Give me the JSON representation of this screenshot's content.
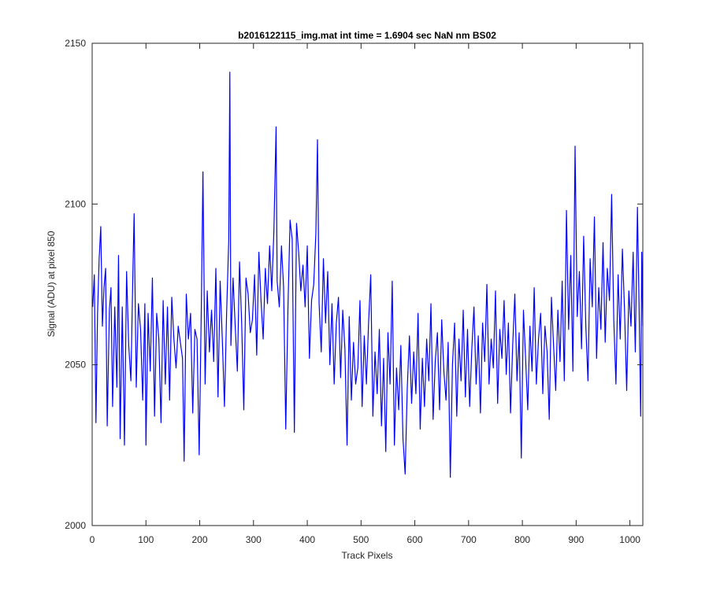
{
  "chart_data": {
    "type": "line",
    "title": "b2016122115_img.mat int time = 1.6904 sec  NaN nm BS02",
    "xlabel": "Track Pixels",
    "ylabel": "Signal (ADU) at pixel 850",
    "xlim": [
      0,
      1024
    ],
    "ylim": [
      2000,
      2150
    ],
    "xticks": [
      0,
      100,
      200,
      300,
      400,
      500,
      600,
      700,
      800,
      900,
      1000
    ],
    "yticks": [
      2000,
      2050,
      2100,
      2150
    ],
    "grid": false,
    "legend": "none",
    "series_color": "#0000ff",
    "series": [
      {
        "values_start_x": 1,
        "values_step_x": 1,
        "anchors": [
          [
            1,
            2068
          ],
          [
            4,
            2078
          ],
          [
            7,
            2032
          ],
          [
            10,
            2066
          ],
          [
            13,
            2083
          ],
          [
            16,
            2093
          ],
          [
            19,
            2062
          ],
          [
            22,
            2074
          ],
          [
            25,
            2080
          ],
          [
            28,
            2031
          ],
          [
            32,
            2067
          ],
          [
            35,
            2074
          ],
          [
            38,
            2037
          ],
          [
            42,
            2068
          ],
          [
            46,
            2043
          ],
          [
            49,
            2084
          ],
          [
            52,
            2027
          ],
          [
            56,
            2068
          ],
          [
            60,
            2025
          ],
          [
            64,
            2079
          ],
          [
            68,
            2056
          ],
          [
            72,
            2045
          ],
          [
            76,
            2081
          ],
          [
            78,
            2097
          ],
          [
            82,
            2043
          ],
          [
            86,
            2069
          ],
          [
            90,
            2061
          ],
          [
            94,
            2039
          ],
          [
            98,
            2069
          ],
          [
            100,
            2025
          ],
          [
            104,
            2066
          ],
          [
            108,
            2048
          ],
          [
            112,
            2077
          ],
          [
            116,
            2034
          ],
          [
            120,
            2066
          ],
          [
            124,
            2058
          ],
          [
            128,
            2032
          ],
          [
            132,
            2070
          ],
          [
            136,
            2044
          ],
          [
            140,
            2068
          ],
          [
            144,
            2039
          ],
          [
            148,
            2071
          ],
          [
            152,
            2058
          ],
          [
            156,
            2049
          ],
          [
            160,
            2062
          ],
          [
            164,
            2057
          ],
          [
            168,
            2052
          ],
          [
            171,
            2020
          ],
          [
            175,
            2072
          ],
          [
            179,
            2058
          ],
          [
            183,
            2066
          ],
          [
            187,
            2035
          ],
          [
            191,
            2061
          ],
          [
            195,
            2058
          ],
          [
            199,
            2022
          ],
          [
            203,
            2068
          ],
          [
            206,
            2110
          ],
          [
            210,
            2044
          ],
          [
            214,
            2073
          ],
          [
            218,
            2054
          ],
          [
            222,
            2067
          ],
          [
            226,
            2051
          ],
          [
            230,
            2080
          ],
          [
            234,
            2040
          ],
          [
            238,
            2076
          ],
          [
            242,
            2058
          ],
          [
            246,
            2037
          ],
          [
            250,
            2066
          ],
          [
            254,
            2089
          ],
          [
            256,
            2141
          ],
          [
            258,
            2056
          ],
          [
            262,
            2077
          ],
          [
            266,
            2062
          ],
          [
            270,
            2048
          ],
          [
            274,
            2082
          ],
          [
            278,
            2063
          ],
          [
            282,
            2036
          ],
          [
            286,
            2077
          ],
          [
            290,
            2072
          ],
          [
            294,
            2060
          ],
          [
            298,
            2064
          ],
          [
            302,
            2078
          ],
          [
            306,
            2053
          ],
          [
            310,
            2085
          ],
          [
            314,
            2070
          ],
          [
            318,
            2058
          ],
          [
            322,
            2080
          ],
          [
            326,
            2069
          ],
          [
            330,
            2087
          ],
          [
            334,
            2073
          ],
          [
            338,
            2092
          ],
          [
            342,
            2124
          ],
          [
            344,
            2076
          ],
          [
            348,
            2068
          ],
          [
            352,
            2087
          ],
          [
            356,
            2074
          ],
          [
            360,
            2030
          ],
          [
            364,
            2067
          ],
          [
            368,
            2095
          ],
          [
            372,
            2089
          ],
          [
            376,
            2029
          ],
          [
            380,
            2094
          ],
          [
            384,
            2085
          ],
          [
            388,
            2073
          ],
          [
            392,
            2081
          ],
          [
            396,
            2068
          ],
          [
            400,
            2087
          ],
          [
            404,
            2052
          ],
          [
            408,
            2070
          ],
          [
            412,
            2075
          ],
          [
            416,
            2091
          ],
          [
            419,
            2120
          ],
          [
            422,
            2069
          ],
          [
            426,
            2054
          ],
          [
            430,
            2083
          ],
          [
            434,
            2063
          ],
          [
            438,
            2079
          ],
          [
            442,
            2050
          ],
          [
            446,
            2069
          ],
          [
            450,
            2044
          ],
          [
            454,
            2063
          ],
          [
            458,
            2071
          ],
          [
            462,
            2046
          ],
          [
            466,
            2067
          ],
          [
            470,
            2055
          ],
          [
            474,
            2025
          ],
          [
            478,
            2065
          ],
          [
            482,
            2039
          ],
          [
            486,
            2057
          ],
          [
            490,
            2044
          ],
          [
            494,
            2049
          ],
          [
            498,
            2070
          ],
          [
            502,
            2037
          ],
          [
            506,
            2059
          ],
          [
            510,
            2044
          ],
          [
            514,
            2063
          ],
          [
            518,
            2078
          ],
          [
            522,
            2034
          ],
          [
            526,
            2054
          ],
          [
            530,
            2041
          ],
          [
            534,
            2061
          ],
          [
            538,
            2031
          ],
          [
            542,
            2052
          ],
          [
            546,
            2023
          ],
          [
            550,
            2060
          ],
          [
            554,
            2044
          ],
          [
            558,
            2076
          ],
          [
            562,
            2025
          ],
          [
            566,
            2049
          ],
          [
            570,
            2036
          ],
          [
            574,
            2056
          ],
          [
            578,
            2027
          ],
          [
            582,
            2016
          ],
          [
            586,
            2043
          ],
          [
            590,
            2059
          ],
          [
            594,
            2038
          ],
          [
            598,
            2054
          ],
          [
            602,
            2041
          ],
          [
            606,
            2066
          ],
          [
            610,
            2030
          ],
          [
            614,
            2052
          ],
          [
            618,
            2037
          ],
          [
            622,
            2058
          ],
          [
            626,
            2045
          ],
          [
            630,
            2069
          ],
          [
            634,
            2033
          ],
          [
            638,
            2051
          ],
          [
            642,
            2060
          ],
          [
            646,
            2036
          ],
          [
            650,
            2064
          ],
          [
            654,
            2048
          ],
          [
            658,
            2039
          ],
          [
            662,
            2057
          ],
          [
            666,
            2015
          ],
          [
            670,
            2050
          ],
          [
            674,
            2063
          ],
          [
            678,
            2034
          ],
          [
            682,
            2058
          ],
          [
            686,
            2045
          ],
          [
            690,
            2067
          ],
          [
            694,
            2040
          ],
          [
            698,
            2061
          ],
          [
            702,
            2037
          ],
          [
            706,
            2055
          ],
          [
            710,
            2068
          ],
          [
            714,
            2044
          ],
          [
            718,
            2059
          ],
          [
            722,
            2035
          ],
          [
            726,
            2063
          ],
          [
            730,
            2051
          ],
          [
            734,
            2075
          ],
          [
            738,
            2044
          ],
          [
            742,
            2058
          ],
          [
            746,
            2049
          ],
          [
            750,
            2073
          ],
          [
            754,
            2038
          ],
          [
            758,
            2061
          ],
          [
            762,
            2052
          ],
          [
            766,
            2070
          ],
          [
            770,
            2047
          ],
          [
            774,
            2063
          ],
          [
            778,
            2035
          ],
          [
            782,
            2056
          ],
          [
            786,
            2072
          ],
          [
            790,
            2045
          ],
          [
            794,
            2060
          ],
          [
            798,
            2021
          ],
          [
            802,
            2067
          ],
          [
            806,
            2052
          ],
          [
            810,
            2036
          ],
          [
            814,
            2062
          ],
          [
            818,
            2048
          ],
          [
            822,
            2074
          ],
          [
            826,
            2044
          ],
          [
            830,
            2058
          ],
          [
            834,
            2066
          ],
          [
            838,
            2041
          ],
          [
            842,
            2062
          ],
          [
            846,
            2054
          ],
          [
            850,
            2033
          ],
          [
            854,
            2071
          ],
          [
            858,
            2056
          ],
          [
            862,
            2042
          ],
          [
            866,
            2067
          ],
          [
            870,
            2051
          ],
          [
            874,
            2076
          ],
          [
            878,
            2045
          ],
          [
            882,
            2098
          ],
          [
            886,
            2061
          ],
          [
            890,
            2084
          ],
          [
            894,
            2048
          ],
          [
            898,
            2118
          ],
          [
            902,
            2065
          ],
          [
            906,
            2079
          ],
          [
            910,
            2055
          ],
          [
            914,
            2090
          ],
          [
            918,
            2062
          ],
          [
            922,
            2045
          ],
          [
            926,
            2083
          ],
          [
            930,
            2068
          ],
          [
            934,
            2096
          ],
          [
            938,
            2052
          ],
          [
            942,
            2074
          ],
          [
            946,
            2061
          ],
          [
            950,
            2088
          ],
          [
            954,
            2057
          ],
          [
            958,
            2080
          ],
          [
            962,
            2070
          ],
          [
            966,
            2103
          ],
          [
            970,
            2064
          ],
          [
            974,
            2044
          ],
          [
            978,
            2078
          ],
          [
            982,
            2058
          ],
          [
            986,
            2086
          ],
          [
            990,
            2067
          ],
          [
            994,
            2042
          ],
          [
            998,
            2073
          ],
          [
            1002,
            2062
          ],
          [
            1006,
            2085
          ],
          [
            1010,
            2054
          ],
          [
            1014,
            2099
          ],
          [
            1017,
            2069
          ],
          [
            1020,
            2034
          ],
          [
            1022,
            2085
          ],
          [
            1024,
            2062
          ]
        ]
      }
    ]
  }
}
